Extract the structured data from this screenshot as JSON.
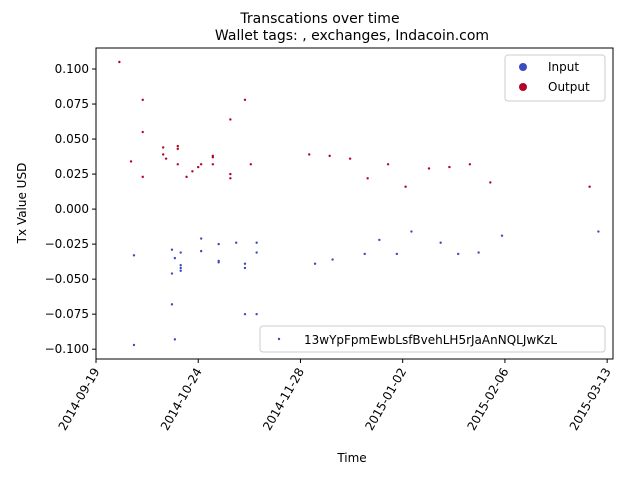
{
  "chart_data": {
    "type": "scatter",
    "suptitle": "Transcations over time",
    "title": "Wallet tags: , exchanges, Indacoin.com",
    "xlabel": "Time",
    "ylabel": "Tx Value USD",
    "xlim": [
      "2014-09-19",
      "2015-03-15"
    ],
    "ylim": [
      -0.107,
      0.115
    ],
    "x_ticks": [
      "2014-09-19",
      "2014-10-24",
      "2014-11-28",
      "2015-01-02",
      "2015-02-06",
      "2015-03-13"
    ],
    "y_ticks": [
      "0.100",
      "0.075",
      "0.050",
      "0.025",
      "0.000",
      "−0.025",
      "−0.050",
      "−0.075",
      "−0.100"
    ],
    "y_tick_values": [
      0.1,
      0.075,
      0.05,
      0.025,
      0.0,
      -0.025,
      -0.05,
      -0.075,
      -0.1
    ],
    "legend_top": {
      "placement": "top-right",
      "entries": [
        {
          "label": "Input",
          "color": "#3b4cc0"
        },
        {
          "label": "Output",
          "color": "#b40426"
        }
      ]
    },
    "legend_bottom": {
      "placement": "bottom-right",
      "label": "13wYpFpmEwbLsfBvehLH5rJaAnNQLJwKzL",
      "color": "#3b4cc0"
    },
    "series": [
      {
        "name": "Output",
        "color": "#b40426",
        "points": [
          [
            "2014-09-27",
            0.105
          ],
          [
            "2014-10-01",
            0.034
          ],
          [
            "2014-10-05",
            0.078
          ],
          [
            "2014-10-05",
            0.055
          ],
          [
            "2014-10-05",
            0.023
          ],
          [
            "2014-10-12",
            0.044
          ],
          [
            "2014-10-12",
            0.039
          ],
          [
            "2014-10-13",
            0.036
          ],
          [
            "2014-10-17",
            0.045
          ],
          [
            "2014-10-17",
            0.043
          ],
          [
            "2014-10-17",
            0.032
          ],
          [
            "2014-10-20",
            0.023
          ],
          [
            "2014-10-22",
            0.027
          ],
          [
            "2014-10-24",
            0.03
          ],
          [
            "2014-10-25",
            0.032
          ],
          [
            "2014-10-29",
            0.038
          ],
          [
            "2014-10-29",
            0.037
          ],
          [
            "2014-10-29",
            0.032
          ],
          [
            "2014-11-04",
            0.064
          ],
          [
            "2014-11-04",
            0.025
          ],
          [
            "2014-11-04",
            0.022
          ],
          [
            "2014-11-09",
            0.078
          ],
          [
            "2014-11-11",
            0.032
          ],
          [
            "2014-12-01",
            0.039
          ],
          [
            "2014-12-08",
            0.038
          ],
          [
            "2014-12-15",
            0.036
          ],
          [
            "2014-12-21",
            0.022
          ],
          [
            "2014-12-28",
            0.032
          ],
          [
            "2015-01-03",
            0.016
          ],
          [
            "2015-01-11",
            0.029
          ],
          [
            "2015-01-18",
            0.03
          ],
          [
            "2015-01-25",
            0.032
          ],
          [
            "2015-02-01",
            0.019
          ],
          [
            "2015-03-07",
            0.016
          ]
        ]
      },
      {
        "name": "Input",
        "color": "#3b4cc0",
        "points": [
          [
            "2014-10-02",
            -0.033
          ],
          [
            "2014-10-02",
            -0.097
          ],
          [
            "2014-10-15",
            -0.029
          ],
          [
            "2014-10-15",
            -0.046
          ],
          [
            "2014-10-15",
            -0.068
          ],
          [
            "2014-10-16",
            -0.035
          ],
          [
            "2014-10-16",
            -0.093
          ],
          [
            "2014-10-18",
            -0.031
          ],
          [
            "2014-10-18",
            -0.04
          ],
          [
            "2014-10-18",
            -0.042
          ],
          [
            "2014-10-18",
            -0.044
          ],
          [
            "2014-10-25",
            -0.021
          ],
          [
            "2014-10-25",
            -0.03
          ],
          [
            "2014-10-31",
            -0.025
          ],
          [
            "2014-10-31",
            -0.037
          ],
          [
            "2014-10-31",
            -0.038
          ],
          [
            "2014-11-06",
            -0.024
          ],
          [
            "2014-11-09",
            -0.039
          ],
          [
            "2014-11-09",
            -0.042
          ],
          [
            "2014-11-09",
            -0.075
          ],
          [
            "2014-11-13",
            -0.024
          ],
          [
            "2014-11-13",
            -0.031
          ],
          [
            "2014-11-13",
            -0.075
          ],
          [
            "2014-12-03",
            -0.039
          ],
          [
            "2014-12-09",
            -0.036
          ],
          [
            "2014-12-20",
            -0.032
          ],
          [
            "2014-12-25",
            -0.022
          ],
          [
            "2014-12-31",
            -0.032
          ],
          [
            "2015-01-05",
            -0.016
          ],
          [
            "2015-01-15",
            -0.024
          ],
          [
            "2015-01-21",
            -0.032
          ],
          [
            "2015-01-28",
            -0.031
          ],
          [
            "2015-02-05",
            -0.019
          ],
          [
            "2015-03-10",
            -0.016
          ]
        ]
      }
    ]
  }
}
